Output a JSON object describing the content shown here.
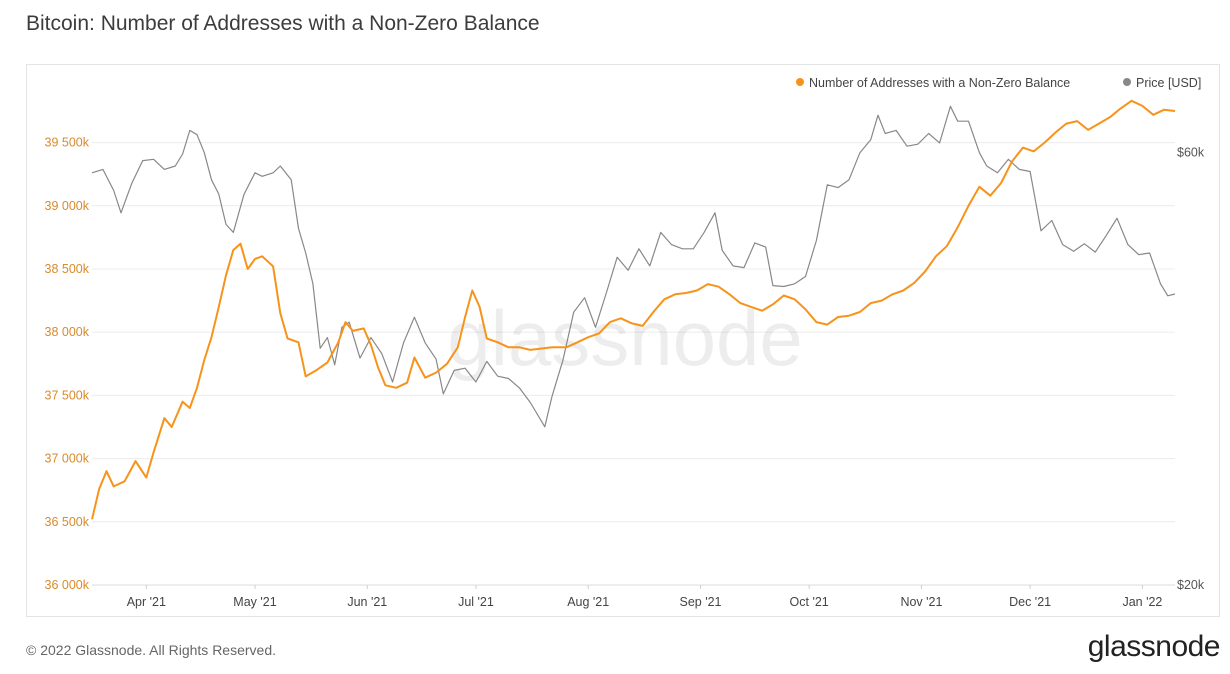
{
  "title": "Bitcoin: Number of Addresses with a Non-Zero Balance",
  "footer": "© 2022 Glassnode. All Rights Reserved.",
  "brand": "glassnode",
  "watermark": "glassnode",
  "colors": {
    "addresses": "#f7931a",
    "price": "#888888",
    "grid": "#ececec",
    "axis_text_left": "#d98a2b",
    "axis_text_right": "#555555"
  },
  "chart_data": {
    "type": "line",
    "title": "Bitcoin: Number of Addresses with a Non-Zero Balance",
    "legend_position": "top-right",
    "grid": true,
    "x_labels": [
      "Apr '21",
      "May '21",
      "Jun '21",
      "Jul '21",
      "Aug '21",
      "Sep '21",
      "Oct '21",
      "Nov '21",
      "Dec '21",
      "Jan '22"
    ],
    "x_label_dates": [
      "2021-04-01",
      "2021-05-01",
      "2021-06-01",
      "2021-07-01",
      "2021-08-01",
      "2021-09-01",
      "2021-10-01",
      "2021-11-01",
      "2021-12-01",
      "2022-01-01"
    ],
    "x_range": [
      "2021-03-17",
      "2022-01-10"
    ],
    "y_left": {
      "unit": "thousands",
      "ticks": [
        "36 000k",
        "36 500k",
        "37 000k",
        "37 500k",
        "38 000k",
        "38 500k",
        "39 000k",
        "39 500k"
      ],
      "range": [
        36000,
        39900
      ]
    },
    "y_right": {
      "ticks": [
        "$20k",
        "$60k"
      ],
      "range": [
        20000,
        70000
      ],
      "scale": "log"
    },
    "series": [
      {
        "name": "Number of Addresses with a Non-Zero Balance",
        "axis": "left",
        "points": [
          [
            "2021-03-17",
            36520
          ],
          [
            "2021-03-19",
            36760
          ],
          [
            "2021-03-21",
            36900
          ],
          [
            "2021-03-23",
            36780
          ],
          [
            "2021-03-26",
            36820
          ],
          [
            "2021-03-29",
            36980
          ],
          [
            "2021-04-01",
            36850
          ],
          [
            "2021-04-03",
            37050
          ],
          [
            "2021-04-06",
            37320
          ],
          [
            "2021-04-08",
            37250
          ],
          [
            "2021-04-11",
            37450
          ],
          [
            "2021-04-13",
            37400
          ],
          [
            "2021-04-15",
            37560
          ],
          [
            "2021-04-17",
            37780
          ],
          [
            "2021-04-19",
            37960
          ],
          [
            "2021-04-21",
            38200
          ],
          [
            "2021-04-23",
            38450
          ],
          [
            "2021-04-25",
            38650
          ],
          [
            "2021-04-27",
            38700
          ],
          [
            "2021-04-29",
            38500
          ],
          [
            "2021-05-01",
            38580
          ],
          [
            "2021-05-03",
            38600
          ],
          [
            "2021-05-06",
            38520
          ],
          [
            "2021-05-08",
            38150
          ],
          [
            "2021-05-10",
            37950
          ],
          [
            "2021-05-13",
            37920
          ],
          [
            "2021-05-15",
            37650
          ],
          [
            "2021-05-18",
            37700
          ],
          [
            "2021-05-21",
            37760
          ],
          [
            "2021-05-24",
            37920
          ],
          [
            "2021-05-26",
            38080
          ],
          [
            "2021-05-28",
            38010
          ],
          [
            "2021-05-31",
            38030
          ],
          [
            "2021-06-02",
            37900
          ],
          [
            "2021-06-04",
            37720
          ],
          [
            "2021-06-06",
            37580
          ],
          [
            "2021-06-09",
            37560
          ],
          [
            "2021-06-12",
            37600
          ],
          [
            "2021-06-14",
            37800
          ],
          [
            "2021-06-17",
            37640
          ],
          [
            "2021-06-20",
            37680
          ],
          [
            "2021-06-23",
            37750
          ],
          [
            "2021-06-26",
            37880
          ],
          [
            "2021-06-28",
            38120
          ],
          [
            "2021-06-30",
            38330
          ],
          [
            "2021-07-02",
            38200
          ],
          [
            "2021-07-04",
            37950
          ],
          [
            "2021-07-07",
            37920
          ],
          [
            "2021-07-10",
            37880
          ],
          [
            "2021-07-13",
            37880
          ],
          [
            "2021-07-16",
            37860
          ],
          [
            "2021-07-19",
            37870
          ],
          [
            "2021-07-22",
            37880
          ],
          [
            "2021-07-26",
            37880
          ],
          [
            "2021-07-29",
            37920
          ],
          [
            "2021-08-01",
            37960
          ],
          [
            "2021-08-04",
            37990
          ],
          [
            "2021-08-07",
            38080
          ],
          [
            "2021-08-10",
            38110
          ],
          [
            "2021-08-13",
            38070
          ],
          [
            "2021-08-16",
            38050
          ],
          [
            "2021-08-19",
            38160
          ],
          [
            "2021-08-22",
            38260
          ],
          [
            "2021-08-25",
            38300
          ],
          [
            "2021-08-28",
            38310
          ],
          [
            "2021-08-31",
            38330
          ],
          [
            "2021-09-03",
            38380
          ],
          [
            "2021-09-06",
            38360
          ],
          [
            "2021-09-09",
            38300
          ],
          [
            "2021-09-12",
            38230
          ],
          [
            "2021-09-15",
            38200
          ],
          [
            "2021-09-18",
            38170
          ],
          [
            "2021-09-21",
            38220
          ],
          [
            "2021-09-24",
            38290
          ],
          [
            "2021-09-27",
            38260
          ],
          [
            "2021-09-30",
            38180
          ],
          [
            "2021-10-03",
            38080
          ],
          [
            "2021-10-06",
            38060
          ],
          [
            "2021-10-09",
            38120
          ],
          [
            "2021-10-12",
            38130
          ],
          [
            "2021-10-15",
            38160
          ],
          [
            "2021-10-18",
            38230
          ],
          [
            "2021-10-21",
            38250
          ],
          [
            "2021-10-24",
            38300
          ],
          [
            "2021-10-27",
            38330
          ],
          [
            "2021-10-30",
            38390
          ],
          [
            "2021-11-02",
            38480
          ],
          [
            "2021-11-05",
            38600
          ],
          [
            "2021-11-08",
            38680
          ],
          [
            "2021-11-11",
            38830
          ],
          [
            "2021-11-14",
            39000
          ],
          [
            "2021-11-17",
            39150
          ],
          [
            "2021-11-20",
            39080
          ],
          [
            "2021-11-23",
            39180
          ],
          [
            "2021-11-26",
            39350
          ],
          [
            "2021-11-29",
            39460
          ],
          [
            "2021-12-02",
            39430
          ],
          [
            "2021-12-05",
            39500
          ],
          [
            "2021-12-08",
            39580
          ],
          [
            "2021-12-11",
            39650
          ],
          [
            "2021-12-14",
            39670
          ],
          [
            "2021-12-17",
            39600
          ],
          [
            "2021-12-20",
            39650
          ],
          [
            "2021-12-23",
            39700
          ],
          [
            "2021-12-26",
            39770
          ],
          [
            "2021-12-29",
            39830
          ],
          [
            "2022-01-01",
            39790
          ],
          [
            "2022-01-04",
            39720
          ],
          [
            "2022-01-07",
            39760
          ],
          [
            "2022-01-10",
            39750
          ]
        ]
      },
      {
        "name": "Price [USD]",
        "axis": "right",
        "points": [
          [
            "2021-03-17",
            57000
          ],
          [
            "2021-03-20",
            57500
          ],
          [
            "2021-03-23",
            54500
          ],
          [
            "2021-03-25",
            51500
          ],
          [
            "2021-03-28",
            55500
          ],
          [
            "2021-03-31",
            58800
          ],
          [
            "2021-04-03",
            59000
          ],
          [
            "2021-04-06",
            57500
          ],
          [
            "2021-04-09",
            58000
          ],
          [
            "2021-04-11",
            59800
          ],
          [
            "2021-04-13",
            63500
          ],
          [
            "2021-04-15",
            62800
          ],
          [
            "2021-04-17",
            60000
          ],
          [
            "2021-04-19",
            56000
          ],
          [
            "2021-04-21",
            54000
          ],
          [
            "2021-04-23",
            50000
          ],
          [
            "2021-04-25",
            49000
          ],
          [
            "2021-04-28",
            54000
          ],
          [
            "2021-05-01",
            57000
          ],
          [
            "2021-05-03",
            56500
          ],
          [
            "2021-05-06",
            57000
          ],
          [
            "2021-05-08",
            58000
          ],
          [
            "2021-05-11",
            56000
          ],
          [
            "2021-05-13",
            49500
          ],
          [
            "2021-05-15",
            46500
          ],
          [
            "2021-05-17",
            43000
          ],
          [
            "2021-05-19",
            36500
          ],
          [
            "2021-05-21",
            37500
          ],
          [
            "2021-05-23",
            35000
          ],
          [
            "2021-05-25",
            38500
          ],
          [
            "2021-05-27",
            39000
          ],
          [
            "2021-05-30",
            35600
          ],
          [
            "2021-06-02",
            37500
          ],
          [
            "2021-06-05",
            36000
          ],
          [
            "2021-06-08",
            33500
          ],
          [
            "2021-06-11",
            37000
          ],
          [
            "2021-06-14",
            39500
          ],
          [
            "2021-06-17",
            37000
          ],
          [
            "2021-06-20",
            35500
          ],
          [
            "2021-06-22",
            32500
          ],
          [
            "2021-06-25",
            34500
          ],
          [
            "2021-06-28",
            34700
          ],
          [
            "2021-07-01",
            33500
          ],
          [
            "2021-07-04",
            35300
          ],
          [
            "2021-07-07",
            34000
          ],
          [
            "2021-07-10",
            33800
          ],
          [
            "2021-07-13",
            33000
          ],
          [
            "2021-07-16",
            31800
          ],
          [
            "2021-07-20",
            29900
          ],
          [
            "2021-07-22",
            32300
          ],
          [
            "2021-07-25",
            35400
          ],
          [
            "2021-07-28",
            40000
          ],
          [
            "2021-07-31",
            41500
          ],
          [
            "2021-08-03",
            38500
          ],
          [
            "2021-08-06",
            42000
          ],
          [
            "2021-08-09",
            46000
          ],
          [
            "2021-08-12",
            44500
          ],
          [
            "2021-08-15",
            47000
          ],
          [
            "2021-08-18",
            45000
          ],
          [
            "2021-08-21",
            49000
          ],
          [
            "2021-08-24",
            47500
          ],
          [
            "2021-08-27",
            47000
          ],
          [
            "2021-08-30",
            47000
          ],
          [
            "2021-09-02",
            49000
          ],
          [
            "2021-09-05",
            51500
          ],
          [
            "2021-09-07",
            46800
          ],
          [
            "2021-09-10",
            45000
          ],
          [
            "2021-09-13",
            44800
          ],
          [
            "2021-09-16",
            47700
          ],
          [
            "2021-09-19",
            47200
          ],
          [
            "2021-09-21",
            42800
          ],
          [
            "2021-09-24",
            42700
          ],
          [
            "2021-09-27",
            43000
          ],
          [
            "2021-09-30",
            43800
          ],
          [
            "2021-10-03",
            48000
          ],
          [
            "2021-10-06",
            55300
          ],
          [
            "2021-10-09",
            54900
          ],
          [
            "2021-10-12",
            56000
          ],
          [
            "2021-10-15",
            60000
          ],
          [
            "2021-10-18",
            62000
          ],
          [
            "2021-10-20",
            66000
          ],
          [
            "2021-10-22",
            63000
          ],
          [
            "2021-10-25",
            63500
          ],
          [
            "2021-10-28",
            61000
          ],
          [
            "2021-10-31",
            61300
          ],
          [
            "2021-11-03",
            63000
          ],
          [
            "2021-11-06",
            61500
          ],
          [
            "2021-11-09",
            67500
          ],
          [
            "2021-11-11",
            65000
          ],
          [
            "2021-11-14",
            65000
          ],
          [
            "2021-11-17",
            60000
          ],
          [
            "2021-11-19",
            58000
          ],
          [
            "2021-11-22",
            57000
          ],
          [
            "2021-11-25",
            59000
          ],
          [
            "2021-11-28",
            57500
          ],
          [
            "2021-12-01",
            57200
          ],
          [
            "2021-12-04",
            49200
          ],
          [
            "2021-12-07",
            50500
          ],
          [
            "2021-12-10",
            47500
          ],
          [
            "2021-12-13",
            46700
          ],
          [
            "2021-12-16",
            47600
          ],
          [
            "2021-12-19",
            46600
          ],
          [
            "2021-12-22",
            48600
          ],
          [
            "2021-12-25",
            50800
          ],
          [
            "2021-12-28",
            47500
          ],
          [
            "2021-12-31",
            46300
          ],
          [
            "2022-01-03",
            46500
          ],
          [
            "2022-01-06",
            43000
          ],
          [
            "2022-01-08",
            41700
          ],
          [
            "2022-01-10",
            41900
          ]
        ]
      }
    ]
  }
}
